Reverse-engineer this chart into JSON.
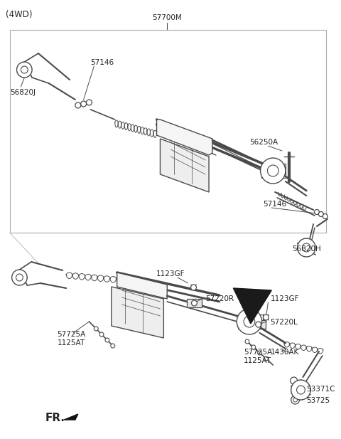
{
  "bg_color": "#ffffff",
  "lc": "#4a4a4a",
  "lc2": "#666666",
  "title": "(4WD)",
  "label_57700M": "57700M",
  "label_56820J": "56820J",
  "label_57146a": "57146",
  "label_56250A": "56250A",
  "label_57146b": "57146",
  "label_56820H": "56820H",
  "label_1123GF_a": "1123GF",
  "label_57220R": "57220R",
  "label_1123GF_b": "1123GF",
  "label_57220L": "57220L",
  "label_57725A_a": "57725A",
  "label_1125AT_a": "1125AT",
  "label_57725A_b": "57725A",
  "label_1125AT_b": "1125AT",
  "label_1430AK": "1430AK",
  "label_53371C": "53371C",
  "label_53725": "53725",
  "label_FR": "FR.",
  "fs": 7.5,
  "fs_title": 8.5
}
